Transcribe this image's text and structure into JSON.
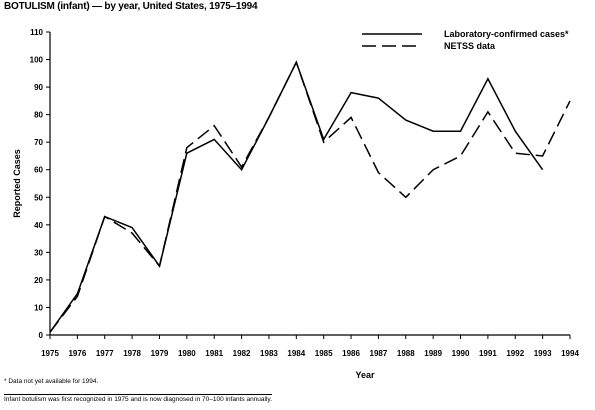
{
  "title": "BOTULISM (infant) — by year, United States, 1975–1994",
  "chart_data": {
    "type": "line",
    "x": [
      1975,
      1976,
      1977,
      1978,
      1979,
      1980,
      1981,
      1982,
      1983,
      1984,
      1985,
      1986,
      1987,
      1988,
      1989,
      1990,
      1991,
      1992,
      1993,
      1994
    ],
    "xlim": [
      1975,
      1994
    ],
    "ylim": [
      0,
      110
    ],
    "yticks": [
      0,
      10,
      20,
      30,
      40,
      50,
      60,
      70,
      80,
      90,
      100,
      110
    ],
    "xlabel": "Year",
    "ylabel": "Reported Cases",
    "grid": false,
    "legend_position": "top-right",
    "series": [
      {
        "name": "Laboratory-confirmed cases*",
        "style": "solid",
        "values": [
          1,
          15,
          43,
          39,
          25,
          66,
          71,
          60,
          79,
          99,
          71,
          88,
          86,
          78,
          74,
          74,
          93,
          74,
          60,
          null
        ]
      },
      {
        "name": "NETSS data",
        "style": "dashed",
        "values": [
          1,
          14,
          43,
          37,
          25,
          68,
          76,
          61,
          79,
          99,
          70,
          79,
          59,
          50,
          60,
          65,
          81,
          66,
          65,
          85
        ]
      }
    ]
  },
  "footnotes": {
    "note1": "* Data not yet available for 1994.",
    "note2": "Infant botulism was first recognized in 1975 and is now diagnosed in 70–100 infants annually."
  }
}
